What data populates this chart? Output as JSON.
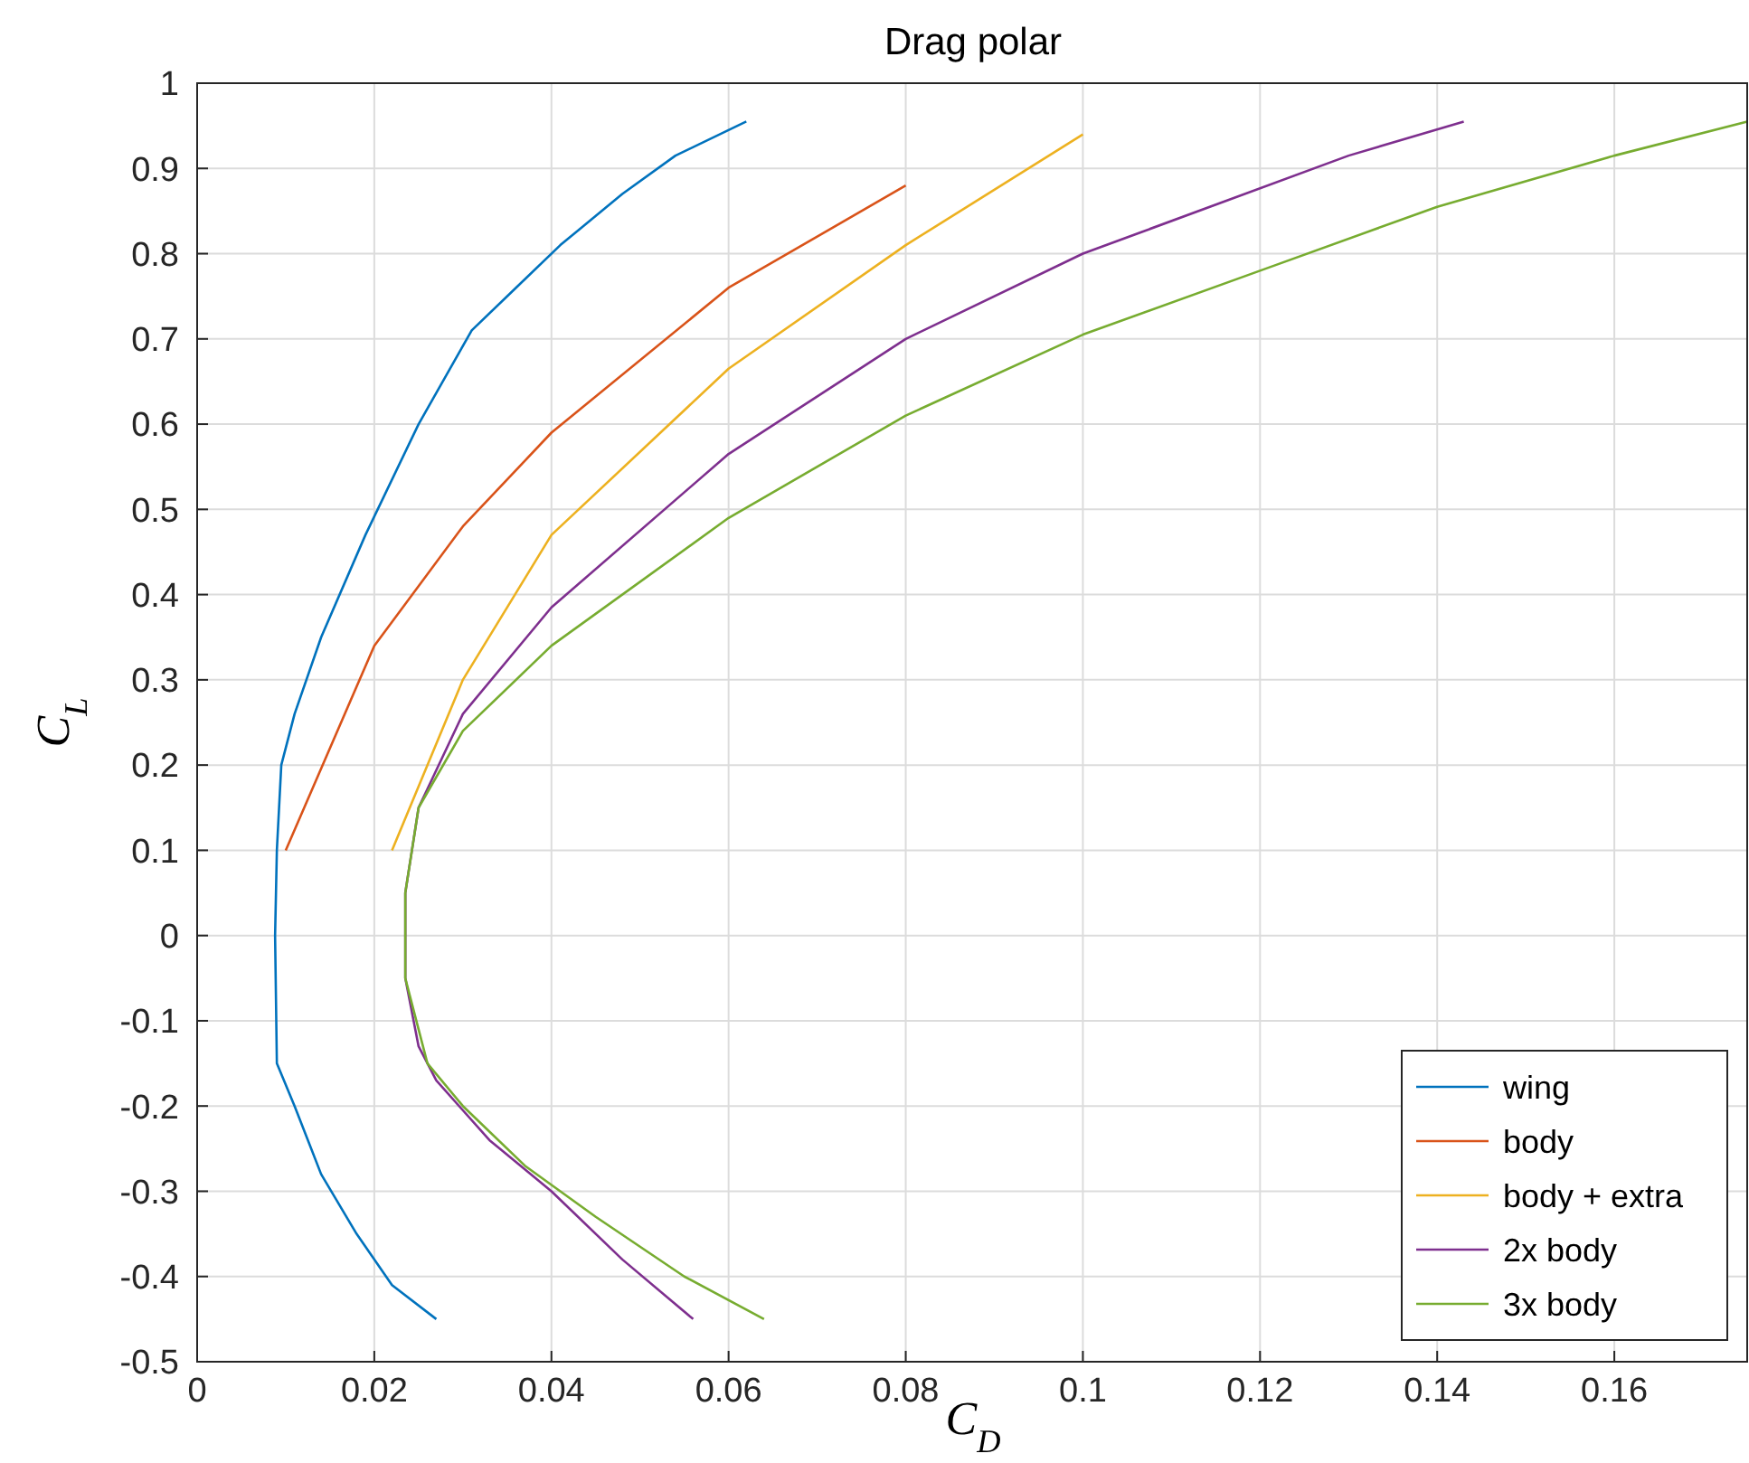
{
  "chart_data": {
    "type": "line",
    "title": "Drag polar",
    "xlabel": "C$_{D}$",
    "ylabel": "C$_{L}$",
    "xlim": [
      0,
      0.175
    ],
    "xticks": [
      0,
      0.02,
      0.04,
      0.06,
      0.08,
      0.1,
      0.12,
      0.14,
      0.16
    ],
    "ylim": [
      -0.5,
      1
    ],
    "yticks": [
      -0.5,
      -0.4,
      -0.3,
      -0.2,
      -0.1,
      0,
      0.1,
      0.2,
      0.3,
      0.4,
      0.5,
      0.6,
      0.7,
      0.8,
      0.9,
      1
    ],
    "grid": true,
    "legend": "bottom right",
    "line_style": "solid",
    "marker": "none",
    "series": [
      {
        "name": "wing",
        "color": "#0072bd",
        "x": [
          0.027,
          0.022,
          0.018,
          0.014,
          0.011,
          0.009,
          0.0088,
          0.009,
          0.0095,
          0.011,
          0.014,
          0.019,
          0.025,
          0.031,
          0.036,
          0.041,
          0.048,
          0.054,
          0.062
        ],
        "values": [
          -0.45,
          -0.41,
          -0.35,
          -0.28,
          -0.2,
          -0.15,
          0,
          0.1,
          0.2,
          0.26,
          0.35,
          0.47,
          0.6,
          0.71,
          0.76,
          0.81,
          0.87,
          0.915,
          0.955
        ]
      },
      {
        "name": "body",
        "color": "#d95319",
        "x": [
          0.01,
          0.02,
          0.03,
          0.04,
          0.06,
          0.08
        ],
        "values": [
          0.1,
          0.34,
          0.48,
          0.59,
          0.76,
          0.88
        ]
      },
      {
        "name": "body + extra",
        "color": "#edb120",
        "x": [
          0.022,
          0.03,
          0.04,
          0.06,
          0.08,
          0.1
        ],
        "values": [
          0.1,
          0.3,
          0.47,
          0.665,
          0.81,
          0.94
        ]
      },
      {
        "name": "2x body",
        "color": "#7e2f8e",
        "x": [
          0.056,
          0.048,
          0.04,
          0.033,
          0.027,
          0.025,
          0.0235,
          0.0235,
          0.025,
          0.03,
          0.04,
          0.06,
          0.08,
          0.1,
          0.13,
          0.143
        ],
        "values": [
          -0.45,
          -0.38,
          -0.3,
          -0.24,
          -0.17,
          -0.13,
          -0.05,
          0.05,
          0.15,
          0.26,
          0.385,
          0.565,
          0.7,
          0.8,
          0.915,
          0.955
        ]
      },
      {
        "name": "3x body",
        "color": "#77ac30",
        "x": [
          0.064,
          0.055,
          0.045,
          0.037,
          0.03,
          0.026,
          0.0235,
          0.0235,
          0.025,
          0.03,
          0.04,
          0.06,
          0.08,
          0.1,
          0.12,
          0.14,
          0.16,
          0.175
        ],
        "values": [
          -0.45,
          -0.4,
          -0.33,
          -0.27,
          -0.2,
          -0.15,
          -0.05,
          0.05,
          0.15,
          0.24,
          0.34,
          0.49,
          0.61,
          0.705,
          0.78,
          0.855,
          0.915,
          0.955
        ]
      }
    ]
  }
}
